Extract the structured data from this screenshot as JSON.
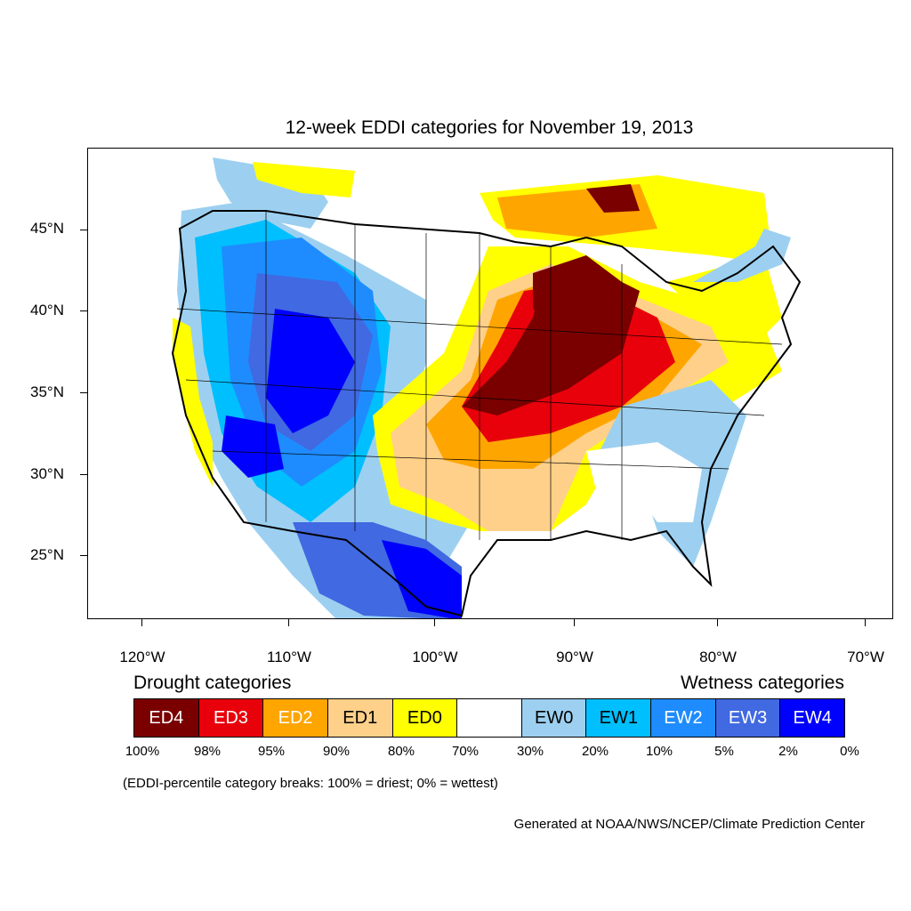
{
  "title": "12-week EDDI categories for November 19, 2013",
  "lat_labels": [
    "45°N",
    "40°N",
    "35°N",
    "30°N",
    "25°N"
  ],
  "lon_labels": [
    "120°W",
    "110°W",
    "100°W",
    "90°W",
    "80°W",
    "70°W"
  ],
  "legend": {
    "drought_heading": "Drought categories",
    "wetness_heading": "Wetness categories",
    "categories": [
      {
        "label": "ED4",
        "color": "#7a0000",
        "text_color": "#ffffff"
      },
      {
        "label": "ED3",
        "color": "#e8000b",
        "text_color": "#ffffff"
      },
      {
        "label": "ED2",
        "color": "#ffa500",
        "text_color": "#ffffff"
      },
      {
        "label": "ED1",
        "color": "#ffd08a",
        "text_color": "#000000"
      },
      {
        "label": "ED0",
        "color": "#ffff00",
        "text_color": "#000000"
      },
      {
        "label": "",
        "color": "#ffffff",
        "text_color": "#000000"
      },
      {
        "label": "EW0",
        "color": "#9dd0f0",
        "text_color": "#000000"
      },
      {
        "label": "EW1",
        "color": "#00bfff",
        "text_color": "#000000"
      },
      {
        "label": "EW2",
        "color": "#1e8cff",
        "text_color": "#ffffff"
      },
      {
        "label": "EW3",
        "color": "#4169e1",
        "text_color": "#ffffff"
      },
      {
        "label": "EW4",
        "color": "#0000ff",
        "text_color": "#ffffff"
      }
    ],
    "breaks": [
      "100%",
      "98%",
      "95%",
      "90%",
      "80%",
      "70%",
      "30%",
      "20%",
      "10%",
      "5%",
      "2%",
      "0%"
    ]
  },
  "note": "(EDDI-percentile category breaks: 100% = driest; 0% = wettest)",
  "credit": "Generated at NOAA/NWS/NCEP/Climate Prediction Center"
}
